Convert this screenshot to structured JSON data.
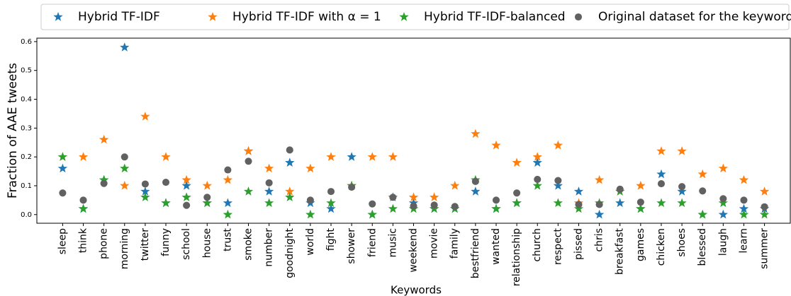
{
  "chart_data": {
    "type": "scatter",
    "ylabel": "Fraction of AAE tweets",
    "xlabel": "Keywords",
    "categories": [
      "sleep",
      "think",
      "phone",
      "morning",
      "twitter",
      "funny",
      "school",
      "house",
      "trust",
      "smoke",
      "number",
      "goodnight",
      "world",
      "fight",
      "shower",
      "friend",
      "music",
      "weekend",
      "movie",
      "family",
      "bestfriend",
      "wanted",
      "relationship",
      "church",
      "respect",
      "pissed",
      "chris",
      "breakfast",
      "games",
      "chicken",
      "shoes",
      "blessed",
      "laugh",
      "learn",
      "summer"
    ],
    "series": [
      {
        "name": "Hybrid TF-IDF",
        "color": "#1f77b4",
        "marker": "star",
        "values": [
          0.16,
          0.02,
          0.12,
          0.58,
          0.08,
          0.04,
          0.1,
          0.04,
          0.04,
          0.22,
          0.08,
          0.18,
          0.04,
          0.02,
          0.2,
          0.0,
          0.06,
          0.04,
          0.02,
          0.02,
          0.08,
          0.02,
          0.04,
          0.18,
          0.1,
          0.08,
          0.0,
          0.04,
          0.02,
          0.14,
          0.08,
          0.0,
          0.0,
          0.02,
          0.02
        ]
      },
      {
        "name": "Hybrid TF-IDF with α = 1",
        "color": "#ff7f0e",
        "marker": "star",
        "values": [
          0.2,
          0.2,
          0.26,
          0.1,
          0.34,
          0.2,
          0.12,
          0.1,
          0.12,
          0.22,
          0.16,
          0.08,
          0.16,
          0.2,
          0.1,
          0.2,
          0.2,
          0.06,
          0.06,
          0.1,
          0.28,
          0.24,
          0.18,
          0.2,
          0.24,
          0.04,
          0.12,
          0.08,
          0.1,
          0.22,
          0.22,
          0.14,
          0.16,
          0.12,
          0.08
        ]
      },
      {
        "name": "Hybrid TF-IDF-balanced",
        "color": "#2ca02c",
        "marker": "star",
        "values": [
          0.2,
          0.02,
          0.12,
          0.16,
          0.06,
          0.04,
          0.06,
          0.04,
          0.0,
          0.08,
          0.04,
          0.06,
          0.0,
          0.04,
          0.1,
          0.0,
          0.02,
          0.02,
          0.02,
          0.02,
          0.12,
          0.02,
          0.04,
          0.1,
          0.04,
          0.02,
          0.04,
          0.08,
          0.02,
          0.04,
          0.04,
          0.0,
          0.04,
          0.0,
          0.0
        ]
      },
      {
        "name": "Original dataset for the keyword",
        "color": "#616161",
        "marker": "circle",
        "values": [
          0.075,
          0.05,
          0.108,
          0.2,
          0.106,
          0.112,
          0.032,
          0.06,
          0.155,
          0.185,
          0.11,
          0.224,
          0.05,
          0.08,
          0.095,
          0.037,
          0.06,
          0.03,
          0.033,
          0.028,
          0.115,
          0.05,
          0.075,
          0.122,
          0.118,
          0.035,
          0.035,
          0.088,
          0.043,
          0.107,
          0.097,
          0.082,
          0.055,
          0.05,
          0.027
        ]
      }
    ],
    "ylim": [
      -0.03,
      0.612
    ],
    "yticks": [
      {
        "value": 0,
        "label": "0.0"
      },
      0.1,
      0.2,
      0.3,
      0.4,
      0.5,
      0.6
    ],
    "grid": false,
    "legend": "top"
  }
}
